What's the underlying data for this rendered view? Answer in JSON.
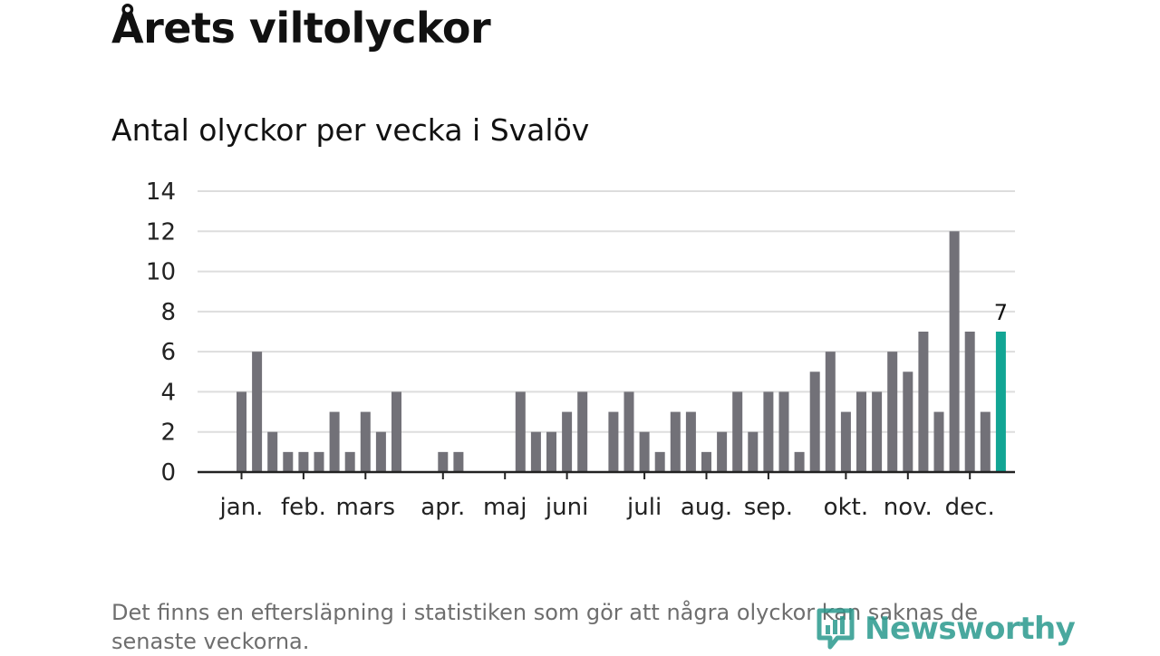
{
  "header": {
    "title": "Årets viltolyckor",
    "subtitle": "Antal olyckor per vecka i Svalöv"
  },
  "footnote": "Det finns en eftersläpning i statistiken som gör att några olyckor kan saknas de senaste veckorna.",
  "brand": {
    "name": "Newsworthy",
    "icon": "newsworthy-logo-icon"
  },
  "colors": {
    "bar": "#727178",
    "highlight": "#12a594",
    "grid": "#dddddd",
    "axis": "#222222"
  },
  "chart_data": {
    "type": "bar",
    "title": "Antal olyckor per vecka i Svalöv",
    "xlabel": "",
    "ylabel": "",
    "ylim": [
      0,
      14
    ],
    "yticks": [
      0,
      2,
      4,
      6,
      8,
      10,
      12,
      14
    ],
    "grid": true,
    "x_unit": "week",
    "x_range": [
      1,
      50
    ],
    "weeks": [
      2,
      3,
      4,
      5,
      6,
      7,
      8,
      9,
      10,
      11,
      12,
      15,
      16,
      20,
      21,
      22,
      23,
      24,
      26,
      27,
      28,
      29,
      30,
      31,
      32,
      33,
      34,
      35,
      36,
      37,
      38,
      39,
      40,
      41,
      42,
      43,
      44,
      45,
      46,
      47,
      48,
      49,
      50
    ],
    "values": [
      4,
      6,
      2,
      1,
      1,
      1,
      3,
      1,
      3,
      2,
      4,
      1,
      1,
      4,
      2,
      2,
      3,
      4,
      3,
      4,
      2,
      1,
      3,
      3,
      1,
      2,
      4,
      2,
      4,
      4,
      1,
      5,
      6,
      3,
      4,
      4,
      6,
      5,
      7,
      3,
      12,
      7,
      3
    ],
    "highlight": {
      "week": 51,
      "value": 7,
      "label": "7"
    },
    "month_ticks": [
      {
        "label": "jan.",
        "week": 2
      },
      {
        "label": "feb.",
        "week": 6
      },
      {
        "label": "mars",
        "week": 10
      },
      {
        "label": "apr.",
        "week": 15
      },
      {
        "label": "maj",
        "week": 19
      },
      {
        "label": "juni",
        "week": 23
      },
      {
        "label": "juli",
        "week": 28
      },
      {
        "label": "aug.",
        "week": 32
      },
      {
        "label": "sep.",
        "week": 36
      },
      {
        "label": "okt.",
        "week": 41
      },
      {
        "label": "nov.",
        "week": 45
      },
      {
        "label": "dec.",
        "week": 49
      }
    ]
  }
}
